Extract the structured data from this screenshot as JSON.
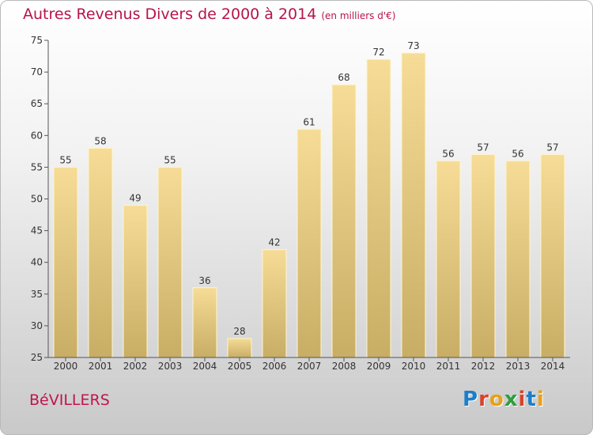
{
  "title": "Autres Revenus Divers de 2000 à 2014",
  "title_unit": "(en milliers d'€)",
  "commune": "BéVILLERS",
  "logo": {
    "text": "Proxiti",
    "colors": [
      "#1c7ec9",
      "#d9432b",
      "#e8a116",
      "#2e9e3e",
      "#d9432b",
      "#1c7ec9",
      "#e8a116"
    ]
  },
  "colors": {
    "bar_top": "#f6dc96",
    "bar_bottom": "#c8ad65",
    "axis": "#555555",
    "grid": "#c8c8c8"
  },
  "chart_data": {
    "type": "bar",
    "categories": [
      "2000",
      "2001",
      "2002",
      "2003",
      "2004",
      "2005",
      "2006",
      "2007",
      "2008",
      "2009",
      "2010",
      "2011",
      "2012",
      "2013",
      "2014"
    ],
    "values": [
      55,
      58,
      49,
      55,
      36,
      28,
      42,
      61,
      68,
      72,
      73,
      56,
      57,
      56,
      57
    ],
    "yticks": [
      25,
      30,
      35,
      40,
      45,
      50,
      55,
      60,
      65,
      70,
      75
    ],
    "ylim": [
      25,
      75
    ],
    "grid": false
  }
}
